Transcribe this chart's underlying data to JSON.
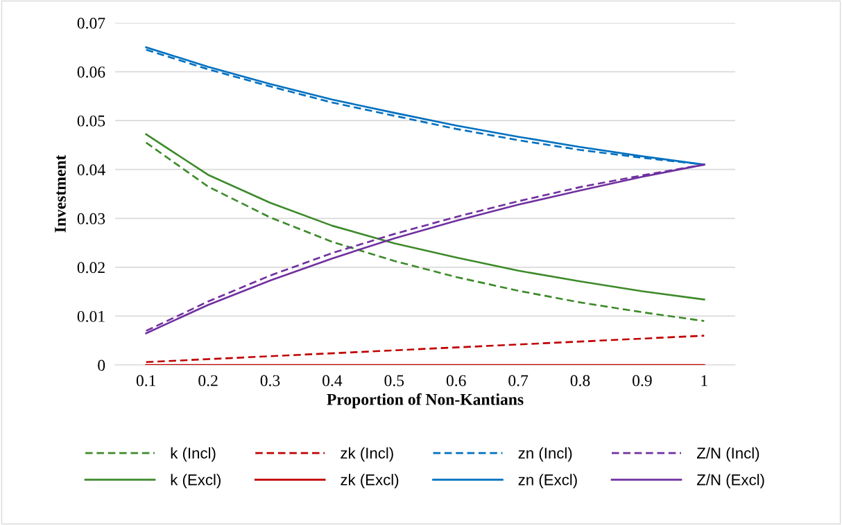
{
  "chart_data": {
    "type": "line",
    "xlabel": "Proportion of Non-Kantians",
    "ylabel": "Investment",
    "categories": [
      "0.1",
      "0.2",
      "0.3",
      "0.4",
      "0.5",
      "0.6",
      "0.7",
      "0.8",
      "0.9",
      "1"
    ],
    "ylim": [
      0,
      0.07
    ],
    "yticks": [
      {
        "value": 0,
        "label": "0"
      },
      0.01,
      0.02,
      0.03,
      0.04,
      0.05,
      0.06,
      0.07
    ],
    "grid": "y",
    "legend": "bottom",
    "marker": "none",
    "series": [
      {
        "name": "k (Incl)",
        "color": "#3d8a2a",
        "line_style": "dashed",
        "values": [
          0.0455,
          0.0365,
          0.0302,
          0.0252,
          0.0213,
          0.018,
          0.0152,
          0.0128,
          0.0108,
          0.009
        ]
      },
      {
        "name": "k (Excl)",
        "color": "#3d8a2a",
        "line_style": "solid",
        "values": [
          0.0472,
          0.0389,
          0.0332,
          0.0285,
          0.0249,
          0.022,
          0.0193,
          0.0171,
          0.0151,
          0.0134
        ]
      },
      {
        "name": "zk (Incl)",
        "color": "#c00000",
        "line_style": "dashed",
        "values": [
          0.0006,
          0.0012,
          0.0018,
          0.0024,
          0.003,
          0.0036,
          0.0042,
          0.0048,
          0.0054,
          0.006
        ]
      },
      {
        "name": "zk (Excl)",
        "color": "#c00000",
        "line_style": "solid",
        "values": [
          0,
          0,
          0,
          0,
          0,
          0,
          0,
          0,
          0,
          0
        ]
      },
      {
        "name": "zn (Incl)",
        "color": "#0070c0",
        "line_style": "dashed",
        "values": [
          0.0645,
          0.0605,
          0.057,
          0.0537,
          0.051,
          0.0483,
          0.046,
          0.044,
          0.0424,
          0.041
        ]
      },
      {
        "name": "zn (Excl)",
        "color": "#0070c0",
        "line_style": "solid",
        "values": [
          0.065,
          0.061,
          0.0575,
          0.0543,
          0.0516,
          0.049,
          0.0467,
          0.0446,
          0.0427,
          0.041
        ]
      },
      {
        "name": "Z/N (Incl)",
        "color": "#7030a0",
        "line_style": "dashed",
        "values": [
          0.007,
          0.013,
          0.0183,
          0.0229,
          0.0268,
          0.0303,
          0.0335,
          0.0364,
          0.0388,
          0.041
        ]
      },
      {
        "name": "Z/N (Excl)",
        "color": "#7030a0",
        "line_style": "solid",
        "values": [
          0.0065,
          0.0123,
          0.0173,
          0.0218,
          0.0259,
          0.0295,
          0.0328,
          0.0357,
          0.0385,
          0.041
        ]
      }
    ]
  }
}
